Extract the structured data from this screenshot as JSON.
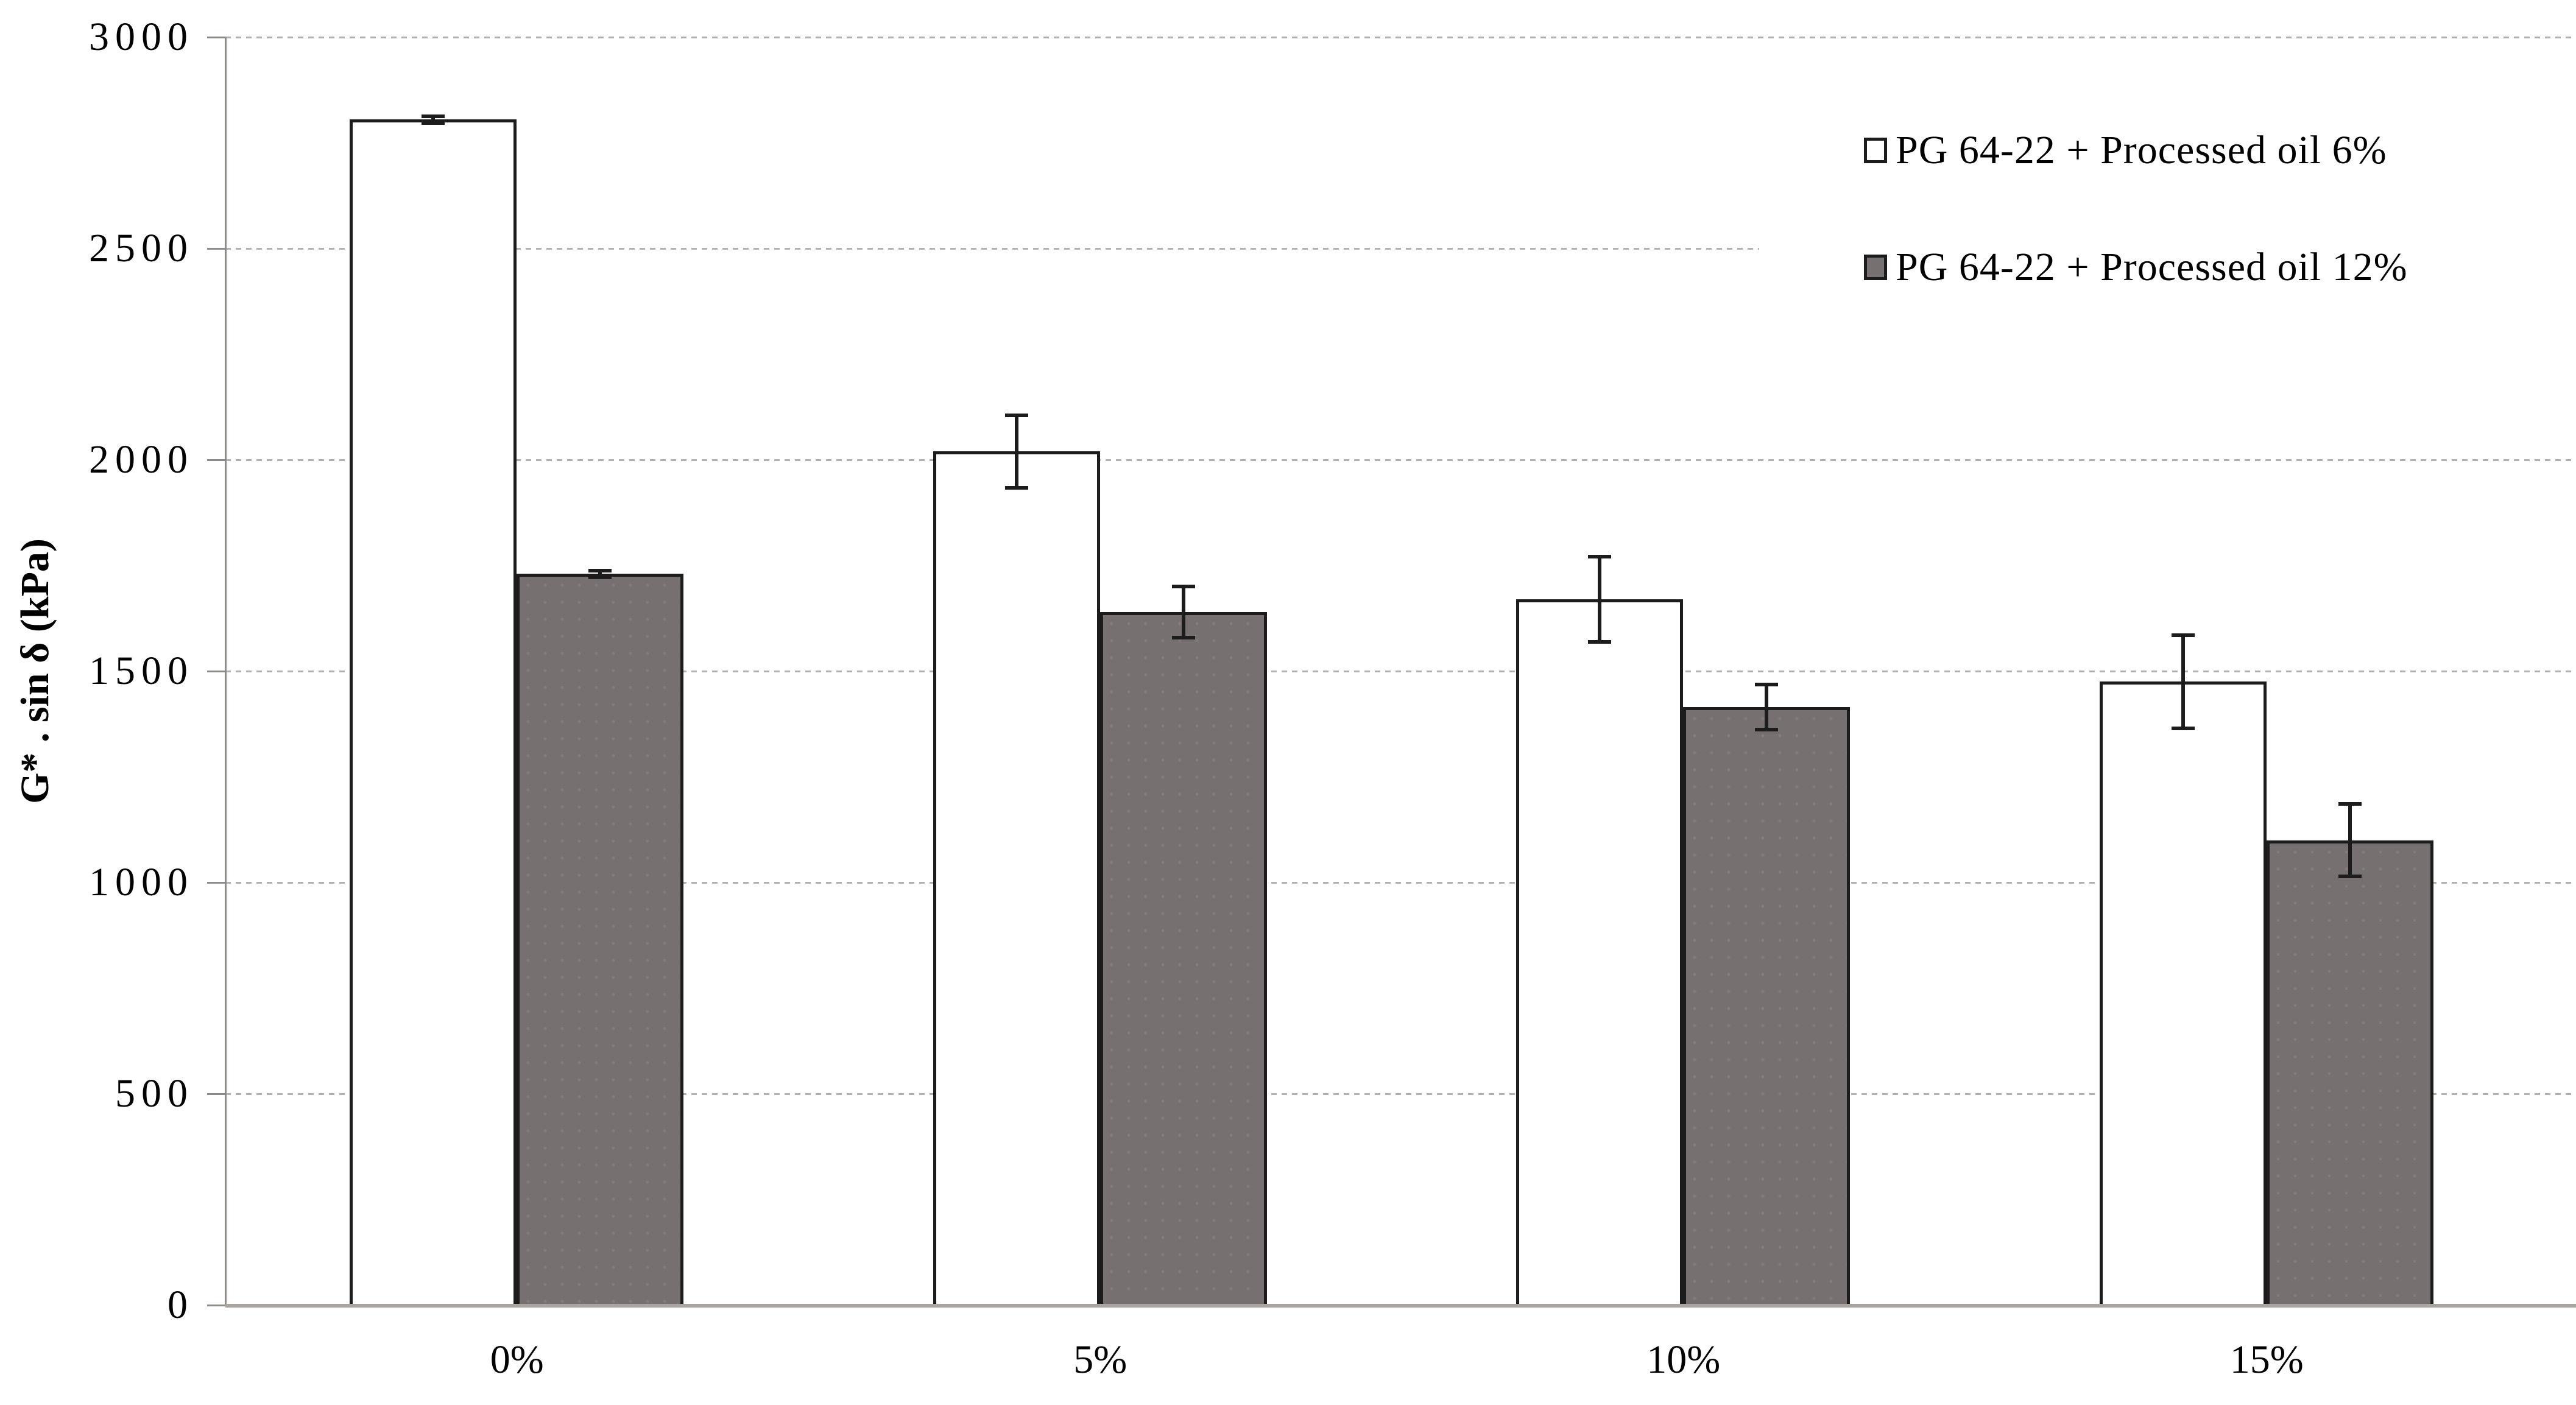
{
  "chart_data": {
    "type": "bar",
    "title": "",
    "xlabel": "",
    "ylabel": "G* . sin δ (kPa)",
    "categories": [
      "0%",
      "5%",
      "10%",
      "15%"
    ],
    "series": [
      {
        "name": "PG 64-22 + Processed oil 6%",
        "fill": "white",
        "values": [
          2805,
          2020,
          1670,
          1475
        ],
        "errors": [
          12,
          90,
          105,
          115
        ]
      },
      {
        "name": "PG 64-22 + Processed oil 12%",
        "fill": "gray",
        "values": [
          1730,
          1640,
          1415,
          1100
        ],
        "errors": [
          12,
          65,
          58,
          90
        ]
      }
    ],
    "ylim": [
      0,
      3000
    ],
    "ytick_step": 500,
    "yticks": [
      0,
      500,
      1000,
      1500,
      2000,
      2500,
      3000
    ],
    "grid": "horizontal-dotted",
    "legend_position": "upper-right",
    "error_bars": true,
    "colors": {
      "bar_white_fill": "#ffffff",
      "bar_gray_fill": "#767170",
      "bar_border": "#1c1c1c",
      "gridline": "#b3b0ad",
      "axis_line": "#8f8b88",
      "baseline": "#a9a5a1",
      "text": "#000000",
      "background": "#ffffff"
    }
  }
}
